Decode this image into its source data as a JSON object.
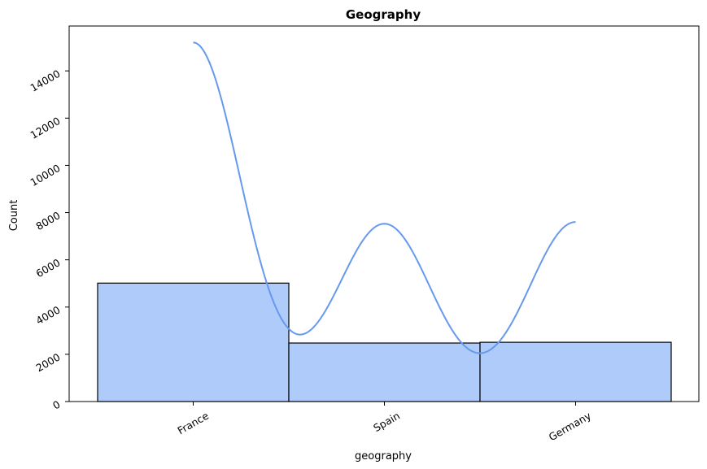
{
  "chart_data": {
    "type": "bar",
    "title": "Geography",
    "xlabel": "geography",
    "ylabel": "Count",
    "categories": [
      "France",
      "Spain",
      "Germany"
    ],
    "values": [
      5014,
      2477,
      2509
    ],
    "ylim": [
      0,
      15900
    ],
    "yticks": [
      "0",
      "2000",
      "4000",
      "6000",
      "8000",
      "10000",
      "12000",
      "14000"
    ],
    "grid": false,
    "bar_color": "#aecbfa",
    "bar_edge_color": "#000000",
    "kde_color": "#6699ee",
    "kde_peaks": [
      {
        "category": "France",
        "value": 15200
      },
      {
        "category": "Spain",
        "value": 7520
      },
      {
        "category": "Germany",
        "value": 7600
      }
    ]
  }
}
